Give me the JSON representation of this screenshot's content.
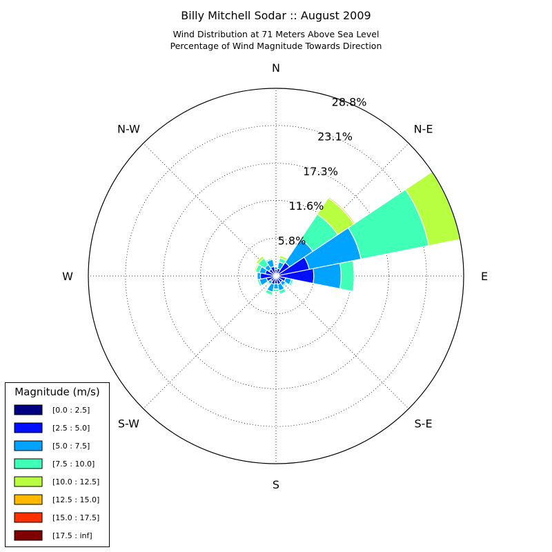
{
  "chart_data": {
    "type": "windrose",
    "title": "Billy Mitchell Sodar :: August 2009",
    "subtitle_lines": [
      "Wind Distribution at 71 Meters Above Sea Level",
      "Percentage of Wind Magnitude Towards Direction"
    ],
    "directions": [
      "N",
      "N-E",
      "E",
      "S-E",
      "S",
      "S-W",
      "W",
      "N-W"
    ],
    "radial_ticks": [
      "5.8%",
      "11.6%",
      "17.3%",
      "23.1%",
      "28.8%"
    ],
    "radial_max": 28.8,
    "radial_unit": "%",
    "grid": true,
    "legend": {
      "title": "Magnitude (m/s)",
      "position": "bottom-left",
      "entries": [
        {
          "label": "[0.0 : 2.5]",
          "color": "#000080"
        },
        {
          "label": "[2.5 : 5.0]",
          "color": "#0010ff"
        },
        {
          "label": "[5.0 : 7.5]",
          "color": "#00a4ff"
        },
        {
          "label": "[7.5 : 10.0]",
          "color": "#40ffb7"
        },
        {
          "label": "[10.0 : 12.5]",
          "color": "#b7ff40"
        },
        {
          "label": "[12.5 : 15.0]",
          "color": "#ffb900"
        },
        {
          "label": "[15.0 : 17.5]",
          "color": "#ff3000"
        },
        {
          "label": "[17.5 : inf]",
          "color": "#800000"
        }
      ]
    },
    "bin_width_deg": 22.5,
    "series": [
      {
        "direction_deg": 0,
        "cumulative_pct": [
          0.3,
          1.0,
          1.4,
          1.5,
          1.5,
          1.5,
          1.5,
          1.5
        ]
      },
      {
        "direction_deg": 22.5,
        "cumulative_pct": [
          0.3,
          1.2,
          2.2,
          2.8,
          3.2,
          3.3,
          3.3,
          3.3
        ]
      },
      {
        "direction_deg": 45,
        "cumulative_pct": [
          0.5,
          2.5,
          6.8,
          11.4,
          14.4,
          14.6,
          14.7,
          14.7
        ]
      },
      {
        "direction_deg": 67.5,
        "cumulative_pct": [
          0.5,
          5.2,
          13.3,
          23.9,
          28.8,
          28.8,
          28.8,
          28.8
        ]
      },
      {
        "direction_deg": 90,
        "cumulative_pct": [
          0.5,
          5.8,
          10.0,
          12.0,
          12.1,
          12.1,
          12.1,
          12.1
        ]
      },
      {
        "direction_deg": 112.5,
        "cumulative_pct": [
          0.4,
          1.5,
          2.4,
          2.7,
          2.7,
          2.7,
          2.7,
          2.7
        ]
      },
      {
        "direction_deg": 135,
        "cumulative_pct": [
          0.3,
          1.2,
          1.8,
          2.0,
          2.0,
          2.0,
          2.0,
          2.0
        ]
      },
      {
        "direction_deg": 157.5,
        "cumulative_pct": [
          0.3,
          1.3,
          2.3,
          2.8,
          2.8,
          2.8,
          2.8,
          2.8
        ]
      },
      {
        "direction_deg": 180,
        "cumulative_pct": [
          0.3,
          1.2,
          2.0,
          2.4,
          2.4,
          2.4,
          2.4,
          2.4
        ]
      },
      {
        "direction_deg": 202.5,
        "cumulative_pct": [
          0.3,
          1.3,
          2.5,
          3.0,
          3.0,
          3.0,
          3.0,
          3.0
        ]
      },
      {
        "direction_deg": 225,
        "cumulative_pct": [
          0.3,
          1.0,
          1.5,
          1.7,
          1.7,
          1.7,
          1.7,
          1.7
        ]
      },
      {
        "direction_deg": 247.5,
        "cumulative_pct": [
          0.3,
          1.5,
          2.6,
          2.9,
          2.9,
          2.9,
          2.9,
          2.9
        ]
      },
      {
        "direction_deg": 270,
        "cumulative_pct": [
          0.3,
          2.4,
          2.9,
          3.0,
          3.0,
          3.0,
          3.0,
          3.0
        ]
      },
      {
        "direction_deg": 292.5,
        "cumulative_pct": [
          0.3,
          1.7,
          2.6,
          3.2,
          3.4,
          3.4,
          3.4,
          3.4
        ]
      },
      {
        "direction_deg": 315,
        "cumulative_pct": [
          0.3,
          1.3,
          2.1,
          3.3,
          3.7,
          3.7,
          3.7,
          3.7
        ]
      },
      {
        "direction_deg": 337.5,
        "cumulative_pct": [
          0.3,
          1.5,
          2.6,
          2.8,
          2.8,
          2.8,
          2.8,
          2.8
        ]
      }
    ]
  }
}
